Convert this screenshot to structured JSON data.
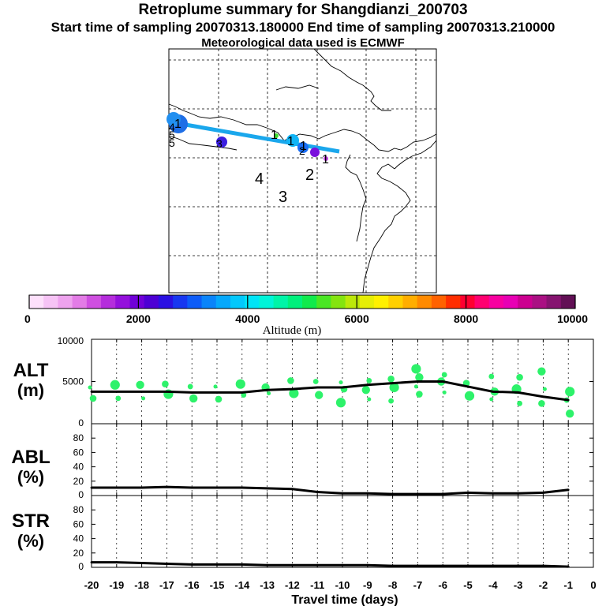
{
  "header": {
    "title": "Retroplume summary for Shangdianzi_200703",
    "sampling": "Start time of sampling 20070313.180000     End time of sampling 20070313.210000",
    "met": "Meteorological data used is ECMWF"
  },
  "map": {
    "plume_color": "#1aa7ec",
    "cluster_labels": [
      {
        "text": "1"
      },
      {
        "text": "1"
      },
      {
        "text": "1"
      },
      {
        "text": "1"
      },
      {
        "text": "2"
      },
      {
        "text": "3"
      },
      {
        "text": "4"
      },
      {
        "text": "5"
      },
      {
        "text": "1"
      },
      {
        "text": "2"
      },
      {
        "text": "3"
      },
      {
        "text": "4"
      },
      {
        "text": "5"
      }
    ]
  },
  "colorbar": {
    "ticks": [
      "0",
      "2000",
      "4000",
      "6000",
      "8000",
      "10000"
    ],
    "label": "Altitude (m)",
    "colors": [
      "#fde0fb",
      "#f6c3f5",
      "#eea3ee",
      "#e37ce6",
      "#cf4fe0",
      "#b52ddc",
      "#9410dc",
      "#7000d8",
      "#4d00d4",
      "#2a10e2",
      "#1737f0",
      "#0d5cf8",
      "#0a84fa",
      "#06a8fb",
      "#03c8fc",
      "#00e4f6",
      "#00f4d8",
      "#00f4a8",
      "#00f07c",
      "#10ea4c",
      "#4ae624",
      "#84e410",
      "#bce80a",
      "#e6ee06",
      "#fff000",
      "#ffd000",
      "#ffae00",
      "#ff8a00",
      "#ff6200",
      "#ff2e00",
      "#ff0030",
      "#ff0070",
      "#f800a0",
      "#e800b4",
      "#cc0090",
      "#aa1083",
      "#861470",
      "#621055"
    ]
  },
  "chart_data": [
    {
      "type": "line",
      "name": "ALT",
      "title": "",
      "ylabel": "ALT (m)",
      "xlabel": "Travel time (days)",
      "xlim": [
        -20,
        0
      ],
      "ylim": [
        0,
        10000
      ],
      "yticks": [
        "10000",
        "5000",
        "0"
      ],
      "x": [
        -20,
        -19,
        -18,
        -17,
        -16,
        -15,
        -14,
        -13,
        -12,
        -11,
        -10,
        -9,
        -8,
        -7,
        -6,
        -5,
        -4,
        -3,
        -2,
        -1
      ],
      "values": [
        3800,
        3800,
        3800,
        3800,
        3700,
        3700,
        3700,
        4000,
        4100,
        4300,
        4300,
        4600,
        4800,
        5000,
        5000,
        4400,
        3800,
        3700,
        3200,
        2800
      ],
      "cluster_points": [
        {
          "x": -20,
          "y": 4300
        },
        {
          "x": -20,
          "y": 3000
        },
        {
          "x": -19,
          "y": 4600
        },
        {
          "x": -19,
          "y": 3000
        },
        {
          "x": -18,
          "y": 4600
        },
        {
          "x": -18,
          "y": 3000
        },
        {
          "x": -17,
          "y": 4700
        },
        {
          "x": -17,
          "y": 3500
        },
        {
          "x": -16,
          "y": 4400
        },
        {
          "x": -16,
          "y": 3000
        },
        {
          "x": -15,
          "y": 4400
        },
        {
          "x": -15,
          "y": 2900
        },
        {
          "x": -14,
          "y": 4700
        },
        {
          "x": -14,
          "y": 3400
        },
        {
          "x": -13,
          "y": 4300
        },
        {
          "x": -13,
          "y": 3600
        },
        {
          "x": -12,
          "y": 5100
        },
        {
          "x": -12,
          "y": 3600
        },
        {
          "x": -11,
          "y": 5000
        },
        {
          "x": -11,
          "y": 3400
        },
        {
          "x": -10,
          "y": 4900
        },
        {
          "x": -10,
          "y": 4100
        },
        {
          "x": -10,
          "y": 2500
        },
        {
          "x": -9,
          "y": 5100
        },
        {
          "x": -9,
          "y": 4000
        },
        {
          "x": -9,
          "y": 2900
        },
        {
          "x": -8,
          "y": 5300
        },
        {
          "x": -8,
          "y": 4300
        },
        {
          "x": -8,
          "y": 2700
        },
        {
          "x": -7,
          "y": 5500
        },
        {
          "x": -7,
          "y": 4400
        },
        {
          "x": -7,
          "y": 3500
        },
        {
          "x": -7,
          "y": 6500
        },
        {
          "x": -6,
          "y": 5800
        },
        {
          "x": -6,
          "y": 5000
        },
        {
          "x": -6,
          "y": 3700
        },
        {
          "x": -5,
          "y": 4800
        },
        {
          "x": -5,
          "y": 3300
        },
        {
          "x": -4,
          "y": 5600
        },
        {
          "x": -4,
          "y": 3800
        },
        {
          "x": -4,
          "y": 2900
        },
        {
          "x": -3,
          "y": 5500
        },
        {
          "x": -3,
          "y": 4100
        },
        {
          "x": -3,
          "y": 2400
        },
        {
          "x": -2,
          "y": 6200
        },
        {
          "x": -2,
          "y": 4100
        },
        {
          "x": -2,
          "y": 2400
        },
        {
          "x": -1,
          "y": 3800
        },
        {
          "x": -1,
          "y": 2800
        },
        {
          "x": -1,
          "y": 1200
        }
      ]
    },
    {
      "type": "line",
      "name": "ABL",
      "ylabel": "ABL (%)",
      "xlim": [
        -20,
        0
      ],
      "ylim": [
        0,
        100
      ],
      "yticks": [
        "80",
        "60",
        "40",
        "20",
        "0"
      ],
      "x": [
        -20,
        -19,
        -18,
        -17,
        -16,
        -15,
        -14,
        -13,
        -12,
        -11,
        -10,
        -9,
        -8,
        -7,
        -6,
        -5,
        -4,
        -3,
        -2,
        -1
      ],
      "values": [
        11,
        11,
        11,
        12,
        11,
        11,
        11,
        10,
        9,
        5,
        3,
        3,
        2,
        2,
        2,
        4,
        3,
        3,
        4,
        8
      ]
    },
    {
      "type": "line",
      "name": "STR",
      "ylabel": "STR (%)",
      "xlabel": "Travel time (days)",
      "xlim": [
        -20,
        0
      ],
      "ylim": [
        0,
        100
      ],
      "yticks": [
        "80",
        "60",
        "40",
        "20",
        "0"
      ],
      "xticks": [
        "-20",
        "-19",
        "-18",
        "-17",
        "-16",
        "-15",
        "-14",
        "-13",
        "-12",
        "-11",
        "-10",
        "-9",
        "-8",
        "-7",
        "-6",
        "-5",
        "-4",
        "-3",
        "-2",
        "-1",
        "0"
      ],
      "x": [
        -20,
        -19,
        -18,
        -17,
        -16,
        -15,
        -14,
        -13,
        -12,
        -11,
        -10,
        -9,
        -8,
        -7,
        -6,
        -5,
        -4,
        -3,
        -2,
        -1
      ],
      "values": [
        7,
        7,
        6,
        5,
        4,
        4,
        4,
        3,
        3,
        3,
        3,
        3,
        2,
        2,
        2,
        2,
        2,
        2,
        2,
        1
      ]
    }
  ],
  "panel_labels": {
    "alt_name": "ALT",
    "alt_unit": "(m)",
    "abl_name": "ABL",
    "abl_unit": "(%)",
    "str_name": "STR",
    "str_unit": "(%)"
  }
}
